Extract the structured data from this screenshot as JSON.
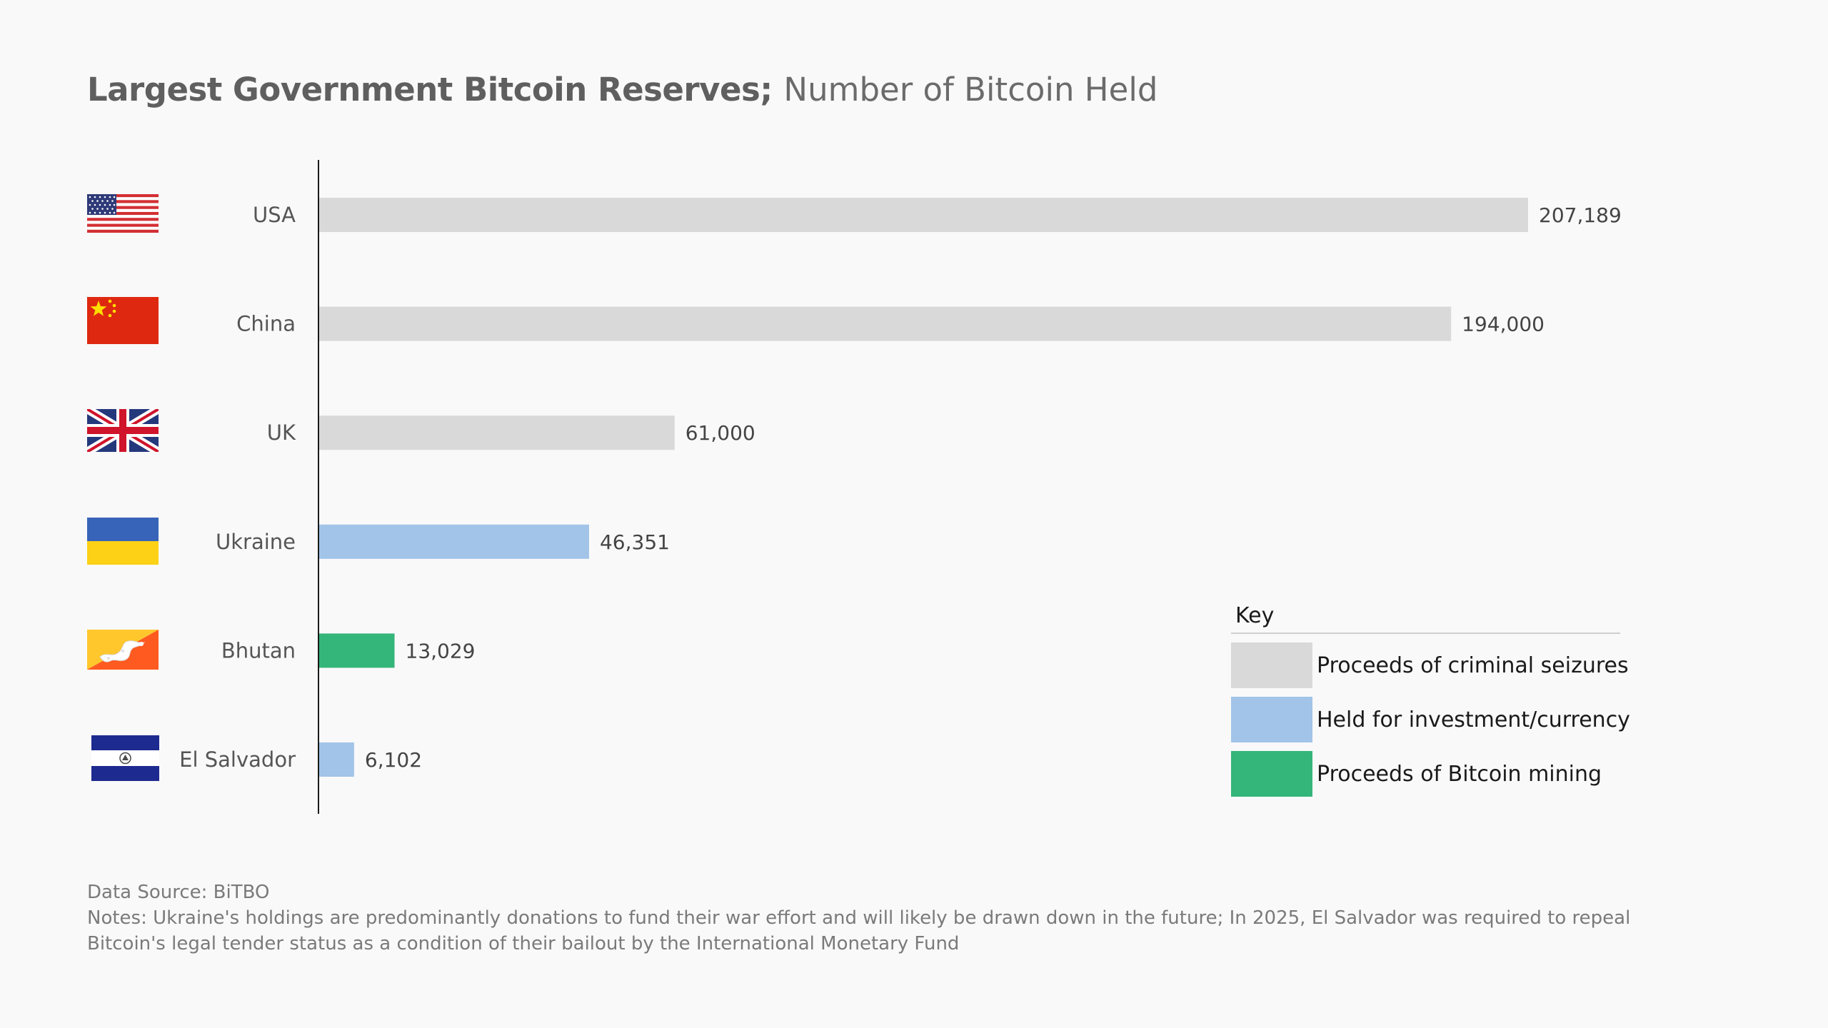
{
  "colors": {
    "background": "#f9f9f9",
    "seizure": "#d9d9d9",
    "investment": "#a1c4e8",
    "mining": "#34b57a",
    "axis": "#1a1a1a"
  },
  "chart_data": {
    "type": "bar",
    "orientation": "horizontal",
    "title_bold": "Largest Government Bitcoin Reserves;",
    "title_light": "Number of Bitcoin Held",
    "categories": [
      "USA",
      "China",
      "UK",
      "Ukraine",
      "Bhutan",
      "El Salvador"
    ],
    "values": [
      207189,
      194000,
      61000,
      46351,
      13029,
      6102
    ],
    "value_labels": [
      "207,189",
      "194,000",
      "61,000",
      "46,351",
      "13,029",
      "6,102"
    ],
    "bar_category": [
      "seizure",
      "seizure",
      "seizure",
      "investment",
      "mining",
      "investment"
    ],
    "flag_icons": [
      "usa-flag-icon",
      "china-flag-icon",
      "uk-flag-icon",
      "ukraine-flag-icon",
      "bhutan-flag-icon",
      "el-salvador-flag-icon"
    ],
    "xlim": [
      0,
      207189
    ],
    "grid": false,
    "legend": {
      "title": "Key",
      "placement": "bottom-right",
      "items": [
        {
          "key": "seizure",
          "label": "Proceeds of criminal seizures"
        },
        {
          "key": "investment",
          "label": "Held for investment/currency"
        },
        {
          "key": "mining",
          "label": "Proceeds of Bitcoin mining"
        }
      ]
    }
  },
  "footer": {
    "source": "Data Source: BiTBO",
    "notes_line1": "Notes: Ukraine's holdings are predominantly donations to fund their war effort and will likely be drawn down in the future;  In 2025, El Salvador was required to repeal",
    "notes_line2": "Bitcoin's legal tender status as a condition of their bailout by the International Monetary Fund"
  }
}
